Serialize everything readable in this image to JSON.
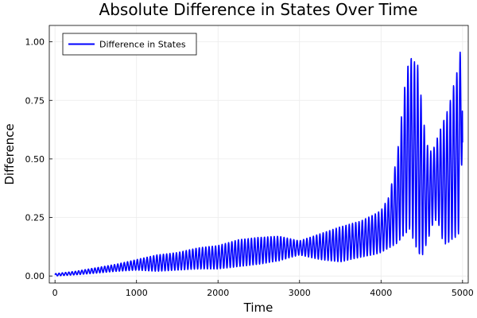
{
  "chart_data": {
    "type": "line",
    "title": "Absolute Difference in States Over Time",
    "xlabel": "Time",
    "ylabel": "Difference",
    "xlim": [
      -70,
      5070
    ],
    "ylim": [
      -0.03,
      1.07
    ],
    "x_ticks": [
      {
        "value": 0,
        "label": "0"
      },
      {
        "value": 1000,
        "label": "1000"
      },
      {
        "value": 2000,
        "label": "2000"
      },
      {
        "value": 3000,
        "label": "3000"
      },
      {
        "value": 4000,
        "label": "4000"
      },
      {
        "value": 5000,
        "label": "5000"
      }
    ],
    "y_ticks": [
      {
        "value": 0.0,
        "label": "0.00"
      },
      {
        "value": 0.25,
        "label": "0.25"
      },
      {
        "value": 0.5,
        "label": "0.50"
      },
      {
        "value": 0.75,
        "label": "0.75"
      },
      {
        "value": 1.0,
        "label": "1.00"
      }
    ],
    "grid": true,
    "legend_position": "top-left",
    "series": [
      {
        "name": "Difference in States",
        "color": "#0000ff",
        "envelope": {
          "x": [
            0,
            250,
            500,
            750,
            1000,
            1250,
            1500,
            1750,
            2000,
            2250,
            2500,
            2750,
            3000,
            3250,
            3500,
            3750,
            3900,
            4000,
            4100,
            4200,
            4300,
            4350,
            4400,
            4450,
            4500,
            4550,
            4600,
            4650,
            4700,
            4750,
            4800,
            4850,
            4900,
            4950,
            5000
          ],
          "upper": [
            0.01,
            0.02,
            0.035,
            0.05,
            0.07,
            0.09,
            0.1,
            0.12,
            0.13,
            0.155,
            0.165,
            0.17,
            0.15,
            0.18,
            0.21,
            0.235,
            0.26,
            0.28,
            0.34,
            0.52,
            0.84,
            0.94,
            0.92,
            0.9,
            0.74,
            0.58,
            0.53,
            0.55,
            0.6,
            0.65,
            0.69,
            0.75,
            0.83,
            0.9,
            1.04
          ],
          "lower": [
            0.0,
            0.005,
            0.012,
            0.02,
            0.025,
            0.02,
            0.025,
            0.03,
            0.03,
            0.04,
            0.05,
            0.065,
            0.09,
            0.07,
            0.06,
            0.08,
            0.09,
            0.1,
            0.12,
            0.14,
            0.18,
            0.2,
            0.15,
            0.1,
            0.08,
            0.13,
            0.18,
            0.24,
            0.23,
            0.16,
            0.13,
            0.15,
            0.16,
            0.18,
            0.55
          ]
        },
        "end_value": 0.57
      }
    ]
  }
}
